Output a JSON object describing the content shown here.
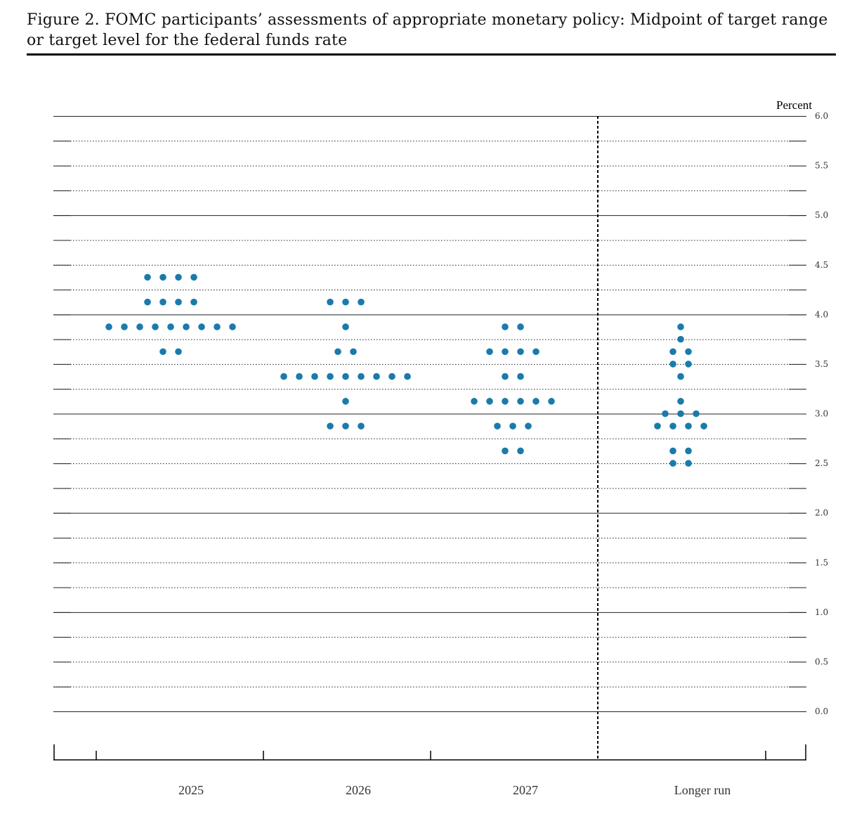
{
  "figure": {
    "title": "Figure 2.  FOMC participants’ assessments of appropriate monetary policy:  Midpoint of target range or target level for the federal funds rate"
  },
  "chart_data": {
    "type": "scatter",
    "subtype": "dot-plot",
    "unit_label": "Percent",
    "ylim": [
      0,
      6
    ],
    "y_ticks": [
      "6.0",
      "5.5",
      "5.0",
      "4.5",
      "4.0",
      "3.5",
      "3.0",
      "2.5",
      "2.0",
      "1.5",
      "1.0",
      "0.5",
      "0.0"
    ],
    "grid": true,
    "dot_color": "#1a7bab",
    "categories": [
      "2025",
      "2026",
      "2027",
      "Longer run"
    ],
    "separator_before": "Longer run",
    "series": [
      {
        "category": "2025",
        "dots": [
          {
            "y": 4.375,
            "count": 4
          },
          {
            "y": 4.125,
            "count": 4
          },
          {
            "y": 3.875,
            "count": 9
          },
          {
            "y": 3.625,
            "count": 2
          }
        ]
      },
      {
        "category": "2026",
        "dots": [
          {
            "y": 4.125,
            "count": 3
          },
          {
            "y": 3.875,
            "count": 1
          },
          {
            "y": 3.625,
            "count": 2
          },
          {
            "y": 3.375,
            "count": 9
          },
          {
            "y": 3.125,
            "count": 1
          },
          {
            "y": 2.875,
            "count": 3
          }
        ]
      },
      {
        "category": "2027",
        "dots": [
          {
            "y": 3.875,
            "count": 2
          },
          {
            "y": 3.625,
            "count": 4
          },
          {
            "y": 3.375,
            "count": 2
          },
          {
            "y": 3.125,
            "count": 6
          },
          {
            "y": 2.875,
            "count": 3
          },
          {
            "y": 2.625,
            "count": 2
          }
        ]
      },
      {
        "category": "Longer run",
        "dots": [
          {
            "y": 3.875,
            "count": 1
          },
          {
            "y": 3.75,
            "count": 1
          },
          {
            "y": 3.625,
            "count": 2
          },
          {
            "y": 3.5,
            "count": 2
          },
          {
            "y": 3.375,
            "count": 1
          },
          {
            "y": 3.125,
            "count": 1
          },
          {
            "y": 3.0,
            "count": 3
          },
          {
            "y": 2.875,
            "count": 4
          },
          {
            "y": 2.625,
            "count": 2
          },
          {
            "y": 2.5,
            "count": 2
          }
        ]
      }
    ]
  }
}
